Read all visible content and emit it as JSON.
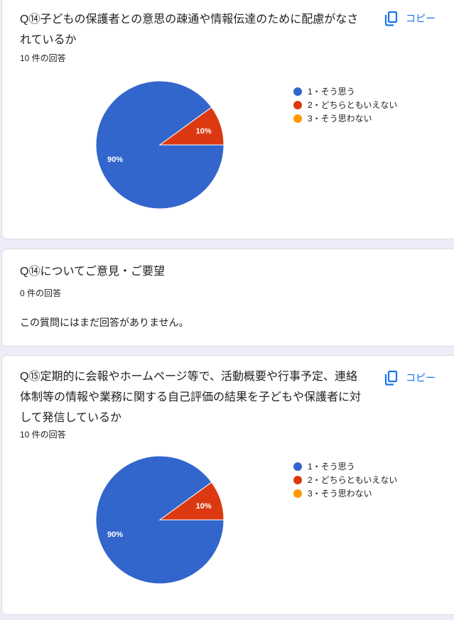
{
  "colors": {
    "accent": "#1a73e8",
    "option1": "#3366cc",
    "option2": "#dc3912",
    "option3": "#ff9900",
    "background": "#f0ebf8"
  },
  "copy_label": "コピー",
  "copy_icon": "copy-icon",
  "questions": [
    {
      "title": "Q⑭子どもの保護者との意思の疎通や情報伝達のために配慮がなされているか",
      "count": "10 件の回答",
      "chart_data": {
        "type": "pie",
        "categories": [
          "1・そう思う",
          "2・どちらともいえない",
          "3・そう思わない"
        ],
        "values": [
          90,
          10,
          0
        ],
        "labels": [
          "90%",
          "10%",
          ""
        ],
        "legend": "right"
      }
    },
    {
      "title": "Q⑭についてご意見・ご要望",
      "count": "0 件の回答",
      "empty_message": "この質問にはまだ回答がありません。"
    },
    {
      "title": "Q⑮定期的に会報やホームページ等で、活動概要や行事予定、連絡体制等の情報や業務に関する自己評価の結果を子どもや保護者に対して発信しているか",
      "count": "10 件の回答",
      "chart_data": {
        "type": "pie",
        "categories": [
          "1・そう思う",
          "2・どちらともいえない",
          "3・そう思わない"
        ],
        "values": [
          90,
          10,
          0
        ],
        "labels": [
          "90%",
          "10%",
          ""
        ],
        "legend": "right"
      }
    }
  ]
}
